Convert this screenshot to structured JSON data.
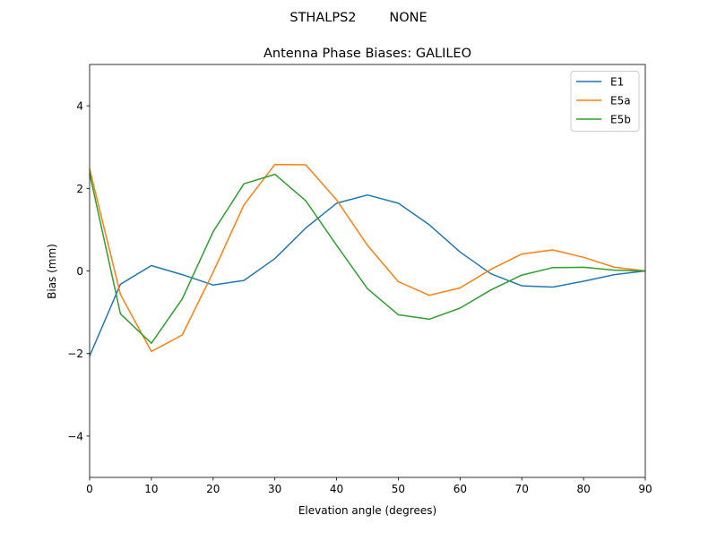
{
  "figure": {
    "suptitle": "STHALPS2        NONE"
  },
  "chart_data": {
    "type": "line",
    "title": "Antenna Phase Biases: GALILEO",
    "xlabel": "Elevation angle (degrees)",
    "ylabel": "Bias (mm)",
    "xlim": [
      0,
      90
    ],
    "ylim": [
      -5,
      5
    ],
    "xticks": [
      0,
      10,
      20,
      30,
      40,
      50,
      60,
      70,
      80,
      90
    ],
    "yticks": [
      -4,
      -2,
      0,
      2,
      4
    ],
    "ytick_labels": [
      "−4",
      "−2",
      "0",
      "2",
      "4"
    ],
    "grid": false,
    "legend_position": "top-right",
    "x": [
      0,
      5,
      10,
      15,
      20,
      25,
      30,
      35,
      40,
      45,
      50,
      55,
      60,
      65,
      70,
      75,
      80,
      85,
      90
    ],
    "series": [
      {
        "name": "E1",
        "color": "#1f77b4",
        "values": [
          -2.06,
          -0.32,
          0.13,
          -0.09,
          -0.34,
          -0.23,
          0.3,
          1.04,
          1.64,
          1.84,
          1.64,
          1.12,
          0.46,
          -0.07,
          -0.36,
          -0.39,
          -0.25,
          -0.09,
          0.0
        ]
      },
      {
        "name": "E5a",
        "color": "#ff7f0e",
        "values": [
          2.47,
          -0.57,
          -1.95,
          -1.55,
          -0.03,
          1.6,
          2.58,
          2.57,
          1.72,
          0.62,
          -0.26,
          -0.59,
          -0.41,
          0.04,
          0.41,
          0.51,
          0.33,
          0.09,
          0.0
        ]
      },
      {
        "name": "E5b",
        "color": "#2ca02c",
        "values": [
          2.36,
          -1.04,
          -1.75,
          -0.68,
          0.95,
          2.11,
          2.34,
          1.7,
          0.62,
          -0.43,
          -1.06,
          -1.17,
          -0.9,
          -0.46,
          -0.1,
          0.08,
          0.09,
          0.02,
          0.0
        ]
      }
    ]
  }
}
